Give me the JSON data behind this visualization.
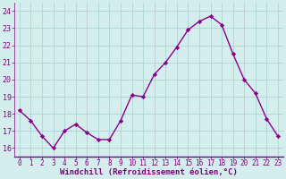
{
  "x": [
    0,
    1,
    2,
    3,
    4,
    5,
    6,
    7,
    8,
    9,
    10,
    11,
    12,
    13,
    14,
    15,
    16,
    17,
    18,
    19,
    20,
    21,
    22,
    23
  ],
  "y": [
    18.2,
    17.6,
    16.7,
    16.0,
    17.0,
    17.4,
    16.9,
    16.5,
    16.5,
    17.6,
    19.1,
    19.0,
    20.3,
    21.0,
    21.9,
    22.9,
    23.4,
    23.7,
    23.2,
    21.5,
    20.0,
    19.2,
    17.7,
    16.7
  ],
  "line_color": "#8B008B",
  "marker": "D",
  "markersize": 2.2,
  "linewidth": 1.0,
  "xlabel": "Windchill (Refroidissement éolien,°C)",
  "xlabel_fontsize": 6.5,
  "ylim": [
    15.5,
    24.5
  ],
  "yticks": [
    16,
    17,
    18,
    19,
    20,
    21,
    22,
    23,
    24
  ],
  "xticks": [
    0,
    1,
    2,
    3,
    4,
    5,
    6,
    7,
    8,
    9,
    10,
    11,
    12,
    13,
    14,
    15,
    16,
    17,
    18,
    19,
    20,
    21,
    22,
    23
  ],
  "bg_color": "#d4eeed",
  "grid_color": "#b0d8d8",
  "tick_color": "#800080",
  "label_color": "#800080",
  "font_family": "monospace",
  "tick_fontsize": 5.5,
  "ytick_fontsize": 6.0
}
